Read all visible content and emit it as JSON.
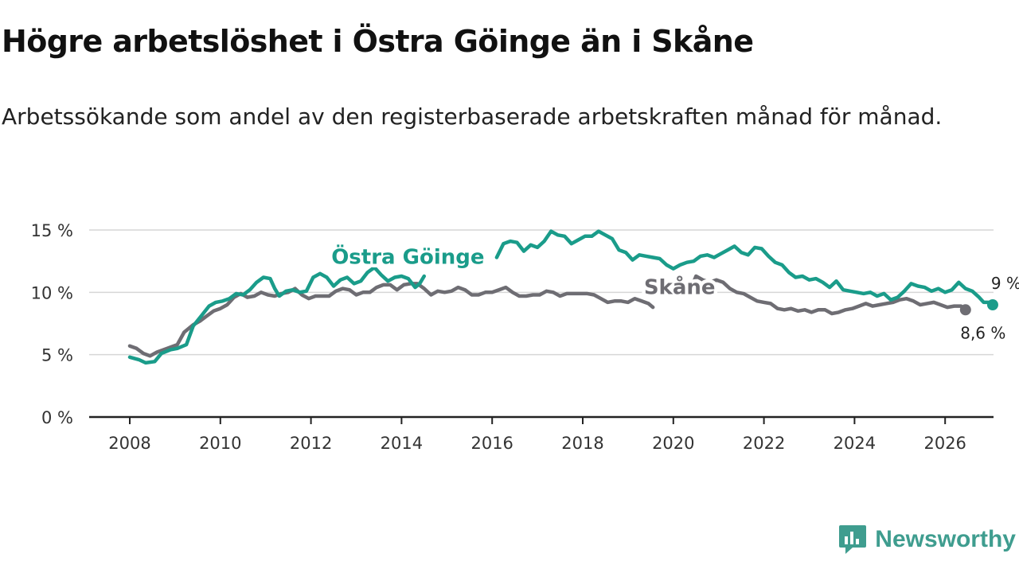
{
  "header": {
    "title": "Högre arbetslöshet i Östra Göinge än i Skåne",
    "subtitle": "Arbetssökande som andel av den registerbaserade arbetskraften månad för månad."
  },
  "brand": {
    "name": "Newsworthy",
    "color": "#3f9d8f"
  },
  "chart_data": {
    "type": "line",
    "title": "Högre arbetslöshet i Östra Göinge än i Skåne",
    "subtitle": "Arbetssökande som andel av den registerbaserade arbetskraften månad för månad.",
    "xlabel": "",
    "ylabel": "",
    "xlim": [
      2007.1,
      2027.1
    ],
    "ylim": [
      0,
      15
    ],
    "x_ticks": [
      2008,
      2010,
      2012,
      2014,
      2016,
      2018,
      2020,
      2022,
      2024,
      2026
    ],
    "x_tick_labels": [
      "2008",
      "2010",
      "2012",
      "2014",
      "2016",
      "2018",
      "2020",
      "2022",
      "2024",
      "2026"
    ],
    "y_ticks": [
      0,
      5,
      10,
      15
    ],
    "y_tick_labels": [
      "0 %",
      "5 %",
      "10 %",
      "15 %"
    ],
    "grid": true,
    "series": [
      {
        "name": "Östra Göinge",
        "label": "Östra Göinge",
        "color": "#1a9c8a",
        "end_label": "9 %",
        "points": [
          [
            2008.0,
            4.8
          ],
          [
            2008.2,
            4.6
          ],
          [
            2008.35,
            4.35
          ],
          [
            2008.55,
            4.45
          ],
          [
            2008.7,
            5.1
          ],
          [
            2008.9,
            5.4
          ],
          [
            2009.05,
            5.5
          ],
          [
            2009.25,
            5.8
          ],
          [
            2009.4,
            7.3
          ],
          [
            2009.6,
            8.2
          ],
          [
            2009.75,
            8.9
          ],
          [
            2009.9,
            9.2
          ],
          [
            2010.05,
            9.3
          ],
          [
            2010.2,
            9.5
          ],
          [
            2010.35,
            9.9
          ],
          [
            2010.5,
            9.8
          ],
          [
            2010.65,
            10.2
          ],
          [
            2010.8,
            10.8
          ],
          [
            2010.95,
            11.2
          ],
          [
            2011.1,
            11.1
          ],
          [
            2011.2,
            10.3
          ],
          [
            2011.3,
            9.7
          ],
          [
            2011.45,
            10.1
          ],
          [
            2011.6,
            10.2
          ],
          [
            2011.75,
            10.0
          ],
          [
            2011.9,
            10.1
          ],
          [
            2012.05,
            11.2
          ],
          [
            2012.2,
            11.5
          ],
          [
            2012.35,
            11.2
          ],
          [
            2012.5,
            10.5
          ],
          [
            2012.65,
            11.0
          ],
          [
            2012.8,
            11.2
          ],
          [
            2012.95,
            10.7
          ],
          [
            2013.1,
            10.9
          ],
          [
            2013.25,
            11.6
          ],
          [
            2013.4,
            12.0
          ],
          [
            2013.55,
            11.4
          ],
          [
            2013.7,
            10.9
          ],
          [
            2013.85,
            11.2
          ],
          [
            2014.0,
            11.3
          ],
          [
            2014.15,
            11.1
          ],
          [
            2014.3,
            10.4
          ],
          [
            2014.4,
            10.7
          ],
          [
            2014.5,
            11.3
          ]
        ],
        "points_right": [
          [
            2016.1,
            12.8
          ],
          [
            2016.25,
            13.9
          ],
          [
            2016.4,
            14.1
          ],
          [
            2016.55,
            14.0
          ],
          [
            2016.7,
            13.3
          ],
          [
            2016.85,
            13.8
          ],
          [
            2017.0,
            13.6
          ],
          [
            2017.15,
            14.1
          ],
          [
            2017.3,
            14.9
          ],
          [
            2017.45,
            14.6
          ],
          [
            2017.6,
            14.5
          ],
          [
            2017.75,
            13.9
          ],
          [
            2017.9,
            14.2
          ],
          [
            2018.05,
            14.5
          ],
          [
            2018.2,
            14.5
          ],
          [
            2018.35,
            14.9
          ],
          [
            2018.5,
            14.6
          ],
          [
            2018.65,
            14.3
          ],
          [
            2018.8,
            13.4
          ],
          [
            2018.95,
            13.2
          ],
          [
            2019.1,
            12.6
          ],
          [
            2019.25,
            13.0
          ],
          [
            2019.4,
            12.9
          ],
          [
            2019.55,
            12.8
          ],
          [
            2019.7,
            12.7
          ],
          [
            2019.85,
            12.2
          ],
          [
            2020.0,
            11.9
          ],
          [
            2020.15,
            12.2
          ],
          [
            2020.3,
            12.4
          ],
          [
            2020.45,
            12.5
          ],
          [
            2020.6,
            12.9
          ],
          [
            2020.75,
            13.0
          ],
          [
            2020.9,
            12.8
          ],
          [
            2021.05,
            13.1
          ],
          [
            2021.2,
            13.4
          ],
          [
            2021.35,
            13.7
          ],
          [
            2021.5,
            13.2
          ],
          [
            2021.65,
            13.0
          ],
          [
            2021.8,
            13.6
          ],
          [
            2021.95,
            13.5
          ],
          [
            2022.1,
            12.9
          ],
          [
            2022.25,
            12.4
          ],
          [
            2022.4,
            12.2
          ],
          [
            2022.55,
            11.6
          ],
          [
            2022.7,
            11.2
          ],
          [
            2022.85,
            11.3
          ],
          [
            2023.0,
            11.0
          ],
          [
            2023.15,
            11.1
          ],
          [
            2023.3,
            10.8
          ],
          [
            2023.45,
            10.4
          ],
          [
            2023.6,
            10.9
          ],
          [
            2023.75,
            10.2
          ],
          [
            2023.9,
            10.1
          ],
          [
            2024.05,
            10.0
          ],
          [
            2024.2,
            9.9
          ],
          [
            2024.35,
            10.0
          ],
          [
            2024.5,
            9.7
          ],
          [
            2024.65,
            9.9
          ],
          [
            2024.8,
            9.4
          ],
          [
            2024.95,
            9.6
          ],
          [
            2025.1,
            10.1
          ],
          [
            2025.25,
            10.7
          ],
          [
            2025.4,
            10.5
          ],
          [
            2025.55,
            10.4
          ],
          [
            2025.7,
            10.1
          ],
          [
            2025.85,
            10.3
          ],
          [
            2026.0,
            10.0
          ],
          [
            2026.15,
            10.2
          ],
          [
            2026.3,
            10.8
          ],
          [
            2026.45,
            10.3
          ],
          [
            2026.6,
            10.1
          ],
          [
            2026.75,
            9.6
          ],
          [
            2026.85,
            9.2
          ],
          [
            2026.95,
            9.2
          ],
          [
            2027.05,
            9.0
          ]
        ]
      },
      {
        "name": "Skåne",
        "label": "Skåne",
        "color": "#6e6d73",
        "end_label": "8,6 %",
        "points": [
          [
            2008.0,
            5.7
          ],
          [
            2008.15,
            5.5
          ],
          [
            2008.3,
            5.1
          ],
          [
            2008.45,
            4.9
          ],
          [
            2008.6,
            5.2
          ],
          [
            2008.75,
            5.4
          ],
          [
            2008.9,
            5.6
          ],
          [
            2009.05,
            5.8
          ],
          [
            2009.2,
            6.8
          ],
          [
            2009.4,
            7.4
          ],
          [
            2009.55,
            7.7
          ],
          [
            2009.7,
            8.1
          ],
          [
            2009.85,
            8.5
          ],
          [
            2010.0,
            8.7
          ],
          [
            2010.15,
            9.0
          ],
          [
            2010.3,
            9.6
          ],
          [
            2010.45,
            9.9
          ],
          [
            2010.6,
            9.6
          ],
          [
            2010.75,
            9.7
          ],
          [
            2010.9,
            10.0
          ],
          [
            2011.05,
            9.8
          ],
          [
            2011.2,
            9.7
          ],
          [
            2011.35,
            9.9
          ],
          [
            2011.5,
            10.0
          ],
          [
            2011.65,
            10.3
          ],
          [
            2011.8,
            9.8
          ],
          [
            2011.95,
            9.5
          ],
          [
            2012.1,
            9.7
          ],
          [
            2012.25,
            9.7
          ],
          [
            2012.4,
            9.7
          ],
          [
            2012.55,
            10.1
          ],
          [
            2012.7,
            10.3
          ],
          [
            2012.85,
            10.2
          ],
          [
            2013.0,
            9.8
          ],
          [
            2013.15,
            10.0
          ],
          [
            2013.3,
            10.0
          ],
          [
            2013.45,
            10.4
          ],
          [
            2013.6,
            10.6
          ],
          [
            2013.75,
            10.6
          ],
          [
            2013.9,
            10.2
          ],
          [
            2014.05,
            10.6
          ],
          [
            2014.2,
            10.7
          ],
          [
            2014.35,
            10.7
          ],
          [
            2014.5,
            10.3
          ],
          [
            2014.65,
            9.8
          ],
          [
            2014.8,
            10.1
          ],
          [
            2014.95,
            10.0
          ],
          [
            2015.1,
            10.1
          ],
          [
            2015.25,
            10.4
          ],
          [
            2015.4,
            10.2
          ],
          [
            2015.55,
            9.8
          ],
          [
            2015.7,
            9.8
          ],
          [
            2015.85,
            10.0
          ],
          [
            2016.0,
            10.0
          ],
          [
            2016.15,
            10.2
          ],
          [
            2016.3,
            10.4
          ],
          [
            2016.45,
            10.0
          ],
          [
            2016.6,
            9.7
          ],
          [
            2016.75,
            9.7
          ],
          [
            2016.9,
            9.8
          ],
          [
            2017.05,
            9.8
          ],
          [
            2017.2,
            10.1
          ],
          [
            2017.35,
            10.0
          ],
          [
            2017.5,
            9.7
          ],
          [
            2017.65,
            9.9
          ],
          [
            2017.8,
            9.9
          ],
          [
            2017.95,
            9.9
          ],
          [
            2018.1,
            9.9
          ],
          [
            2018.25,
            9.8
          ],
          [
            2018.4,
            9.5
          ],
          [
            2018.55,
            9.2
          ],
          [
            2018.7,
            9.3
          ],
          [
            2018.85,
            9.3
          ],
          [
            2019.0,
            9.2
          ],
          [
            2019.15,
            9.5
          ],
          [
            2019.3,
            9.3
          ],
          [
            2019.45,
            9.1
          ],
          [
            2019.55,
            8.8
          ]
        ],
        "points_right": [
          [
            2020.4,
            10.4
          ],
          [
            2020.5,
            11.3
          ],
          [
            2020.65,
            11.0
          ],
          [
            2020.8,
            10.8
          ],
          [
            2020.95,
            11.0
          ],
          [
            2021.1,
            10.8
          ],
          [
            2021.25,
            10.3
          ],
          [
            2021.4,
            10.0
          ],
          [
            2021.55,
            9.9
          ],
          [
            2021.7,
            9.6
          ],
          [
            2021.85,
            9.3
          ],
          [
            2022.0,
            9.2
          ],
          [
            2022.15,
            9.1
          ],
          [
            2022.3,
            8.7
          ],
          [
            2022.45,
            8.6
          ],
          [
            2022.6,
            8.7
          ],
          [
            2022.75,
            8.5
          ],
          [
            2022.9,
            8.6
          ],
          [
            2023.05,
            8.4
          ],
          [
            2023.2,
            8.6
          ],
          [
            2023.35,
            8.6
          ],
          [
            2023.5,
            8.3
          ],
          [
            2023.65,
            8.4
          ],
          [
            2023.8,
            8.6
          ],
          [
            2023.95,
            8.7
          ],
          [
            2024.1,
            8.9
          ],
          [
            2024.25,
            9.1
          ],
          [
            2024.4,
            8.9
          ],
          [
            2024.55,
            9.0
          ],
          [
            2024.7,
            9.1
          ],
          [
            2024.85,
            9.2
          ],
          [
            2025.0,
            9.4
          ],
          [
            2025.15,
            9.5
          ],
          [
            2025.3,
            9.3
          ],
          [
            2025.45,
            9.0
          ],
          [
            2025.6,
            9.1
          ],
          [
            2025.75,
            9.2
          ],
          [
            2025.9,
            9.0
          ],
          [
            2026.05,
            8.8
          ],
          [
            2026.2,
            8.9
          ],
          [
            2026.35,
            8.9
          ],
          [
            2026.45,
            8.6
          ]
        ]
      }
    ]
  }
}
